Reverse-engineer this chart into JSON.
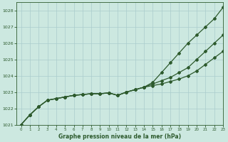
{
  "title": "",
  "xlabel": "Graphe pression niveau de la mer (hPa)",
  "xlim": [
    -0.5,
    23
  ],
  "ylim": [
    1021,
    1028.5
  ],
  "yticks": [
    1021,
    1022,
    1023,
    1024,
    1025,
    1026,
    1027,
    1028
  ],
  "xticks": [
    0,
    1,
    2,
    3,
    4,
    5,
    6,
    7,
    8,
    9,
    10,
    11,
    12,
    13,
    14,
    15,
    16,
    17,
    18,
    19,
    20,
    21,
    22,
    23
  ],
  "bg_color": "#cce8e0",
  "grid_color": "#aacccc",
  "line_color": "#2d5a2d",
  "line1": [
    1021.0,
    1021.6,
    1022.1,
    1022.5,
    1022.6,
    1022.7,
    1022.8,
    1022.85,
    1022.9,
    1022.9,
    1022.95,
    1022.8,
    1023.0,
    1023.15,
    1023.3,
    1023.4,
    1023.5,
    1023.65,
    1023.8,
    1024.0,
    1024.3,
    1024.7,
    1025.1,
    1025.5
  ],
  "line2": [
    1021.0,
    1021.6,
    1022.1,
    1022.5,
    1022.6,
    1022.7,
    1022.8,
    1022.85,
    1022.9,
    1022.9,
    1022.95,
    1022.8,
    1023.0,
    1023.15,
    1023.3,
    1023.5,
    1023.7,
    1023.9,
    1024.2,
    1024.5,
    1025.0,
    1025.5,
    1026.0,
    1026.5
  ],
  "line3": [
    1021.0,
    1021.6,
    1022.1,
    1022.5,
    1022.6,
    1022.7,
    1022.8,
    1022.85,
    1022.9,
    1022.9,
    1022.95,
    1022.8,
    1023.0,
    1023.15,
    1023.3,
    1023.6,
    1024.2,
    1024.8,
    1025.4,
    1026.0,
    1026.5,
    1027.0,
    1027.5,
    1028.2
  ]
}
